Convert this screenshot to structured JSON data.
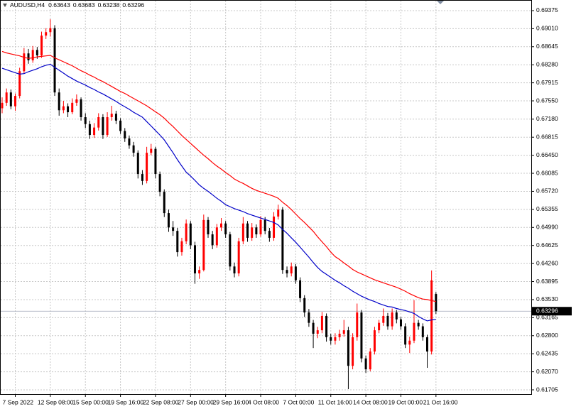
{
  "chart_data": {
    "type": "candlestick",
    "symbol": "AUDUSD,H4",
    "categories": [
      null,
      null,
      null,
      "7 Sep 2022",
      null,
      null,
      null,
      null,
      null,
      null,
      null,
      "12 Sep 08:00",
      null,
      null,
      null,
      null,
      null,
      null,
      null,
      "15 Sep 00:00",
      null,
      null,
      null,
      null,
      null,
      null,
      null,
      "19 Sep 16:00",
      null,
      null,
      null,
      null,
      null,
      null,
      null,
      "22 Sep 08:00",
      null,
      null,
      null,
      null,
      null,
      null,
      null,
      "27 Sep 00:00",
      null,
      null,
      null,
      null,
      null,
      null,
      null,
      "29 Sep 16:00",
      null,
      null,
      null,
      null,
      null,
      null,
      null,
      "4 Oct 08:00",
      null,
      null,
      null,
      null,
      null,
      null,
      null,
      "7 Oct 00:00",
      null,
      null,
      null,
      null,
      null,
      null,
      null,
      "11 Oct 16:00",
      null,
      null,
      null,
      null,
      null,
      null,
      null,
      "14 Oct 08:00",
      null,
      null,
      null,
      null,
      null,
      null,
      null,
      "19 Oct 00:00",
      null,
      null,
      null,
      null,
      null,
      null,
      null,
      "21 Oct 16:00"
    ],
    "open": [
      0.674,
      0.6751,
      0.6772,
      0.6744,
      0.6765,
      0.6815,
      0.6851,
      0.6837,
      0.6858,
      0.6847,
      0.6887,
      0.6894,
      0.6902,
      0.6772,
      0.6736,
      0.6744,
      0.6732,
      0.6751,
      0.6758,
      0.6722,
      0.6708,
      0.6686,
      0.6701,
      0.6722,
      0.6686,
      0.6722,
      0.6729,
      0.6715,
      0.6694,
      0.6679,
      0.6665,
      0.665,
      0.6607,
      0.6593,
      0.665,
      0.6658,
      0.6607,
      0.6571,
      0.6528,
      0.6499,
      0.6492,
      0.6449,
      0.6471,
      0.6507,
      0.6463,
      0.6406,
      0.6413,
      0.6514,
      0.6485,
      0.6463,
      0.6499,
      0.6507,
      0.6485,
      0.642,
      0.6406,
      0.6471,
      0.6507,
      0.6478,
      0.6499,
      0.6485,
      0.6514,
      0.6492,
      0.6478,
      0.6521,
      0.6535,
      0.6413,
      0.6406,
      0.642,
      0.6392,
      0.6356,
      0.6327,
      0.6306,
      0.6284,
      0.6291,
      0.632,
      0.6277,
      0.627,
      0.6277,
      0.6284,
      0.6291,
      0.6219,
      0.6277,
      0.6327,
      0.6234,
      0.6212,
      0.6248,
      0.6291,
      0.6306,
      0.632,
      0.6299,
      0.6327,
      0.6313,
      0.6299,
      0.6262,
      0.627,
      0.6306,
      0.6299,
      0.6277,
      0.6248,
      0.63643
    ],
    "high": [
      0.6762,
      0.678,
      0.6778,
      0.677,
      0.6822,
      0.6862,
      0.686,
      0.6866,
      0.6864,
      0.6895,
      0.6902,
      0.692,
      0.6908,
      0.678,
      0.6755,
      0.675,
      0.676,
      0.6768,
      0.6762,
      0.673,
      0.6715,
      0.671,
      0.673,
      0.6728,
      0.6732,
      0.6745,
      0.6735,
      0.672,
      0.67,
      0.6685,
      0.6672,
      0.6655,
      0.6615,
      0.6662,
      0.6668,
      0.6662,
      0.6612,
      0.6576,
      0.6535,
      0.6512,
      0.6498,
      0.6478,
      0.6515,
      0.6512,
      0.647,
      0.642,
      0.6525,
      0.652,
      0.6492,
      0.6506,
      0.6518,
      0.6512,
      0.649,
      0.6428,
      0.6478,
      0.652,
      0.6512,
      0.6508,
      0.6505,
      0.6522,
      0.652,
      0.6498,
      0.653,
      0.6545,
      0.654,
      0.642,
      0.6428,
      0.6425,
      0.6398,
      0.6362,
      0.6334,
      0.6312,
      0.6298,
      0.6328,
      0.6325,
      0.6284,
      0.6285,
      0.6292,
      0.6312,
      0.6298,
      0.6285,
      0.6345,
      0.6332,
      0.624,
      0.6255,
      0.6298,
      0.6312,
      0.6335,
      0.6326,
      0.6335,
      0.6332,
      0.6318,
      0.6305,
      0.6278,
      0.6352,
      0.6312,
      0.6305,
      0.6282,
      0.6412,
      0.63683
    ],
    "low": [
      0.673,
      0.6745,
      0.6738,
      0.6735,
      0.676,
      0.681,
      0.683,
      0.6832,
      0.684,
      0.6842,
      0.688,
      0.6885,
      0.6765,
      0.6725,
      0.673,
      0.6722,
      0.6728,
      0.6745,
      0.6715,
      0.67,
      0.6678,
      0.668,
      0.6695,
      0.6678,
      0.6682,
      0.6715,
      0.6708,
      0.6688,
      0.6672,
      0.6658,
      0.6642,
      0.6598,
      0.6585,
      0.6588,
      0.6645,
      0.6598,
      0.6562,
      0.652,
      0.649,
      0.6482,
      0.644,
      0.6442,
      0.6465,
      0.6455,
      0.6385,
      0.6395,
      0.641,
      0.6478,
      0.6455,
      0.6458,
      0.6492,
      0.6478,
      0.6412,
      0.6398,
      0.64,
      0.6465,
      0.647,
      0.6472,
      0.6478,
      0.648,
      0.6485,
      0.647,
      0.6472,
      0.6515,
      0.6405,
      0.6398,
      0.64,
      0.6385,
      0.6348,
      0.6318,
      0.6298,
      0.6255,
      0.6275,
      0.6285,
      0.6268,
      0.6262,
      0.6262,
      0.627,
      0.6278,
      0.6172,
      0.6212,
      0.627,
      0.6226,
      0.6205,
      0.6208,
      0.6242,
      0.6285,
      0.63,
      0.6292,
      0.6292,
      0.6305,
      0.6292,
      0.6255,
      0.6245,
      0.6265,
      0.6292,
      0.627,
      0.6215,
      0.6242,
      0.63238
    ],
    "close": [
      0.6751,
      0.6772,
      0.6744,
      0.6765,
      0.6815,
      0.6851,
      0.6837,
      0.6858,
      0.6847,
      0.6887,
      0.6894,
      0.6902,
      0.6772,
      0.6736,
      0.6744,
      0.6732,
      0.6751,
      0.6758,
      0.6722,
      0.6708,
      0.6686,
      0.6701,
      0.6722,
      0.6686,
      0.6722,
      0.6729,
      0.6715,
      0.6694,
      0.6679,
      0.6665,
      0.665,
      0.6607,
      0.6593,
      0.665,
      0.6658,
      0.6607,
      0.6571,
      0.6528,
      0.6499,
      0.6492,
      0.6449,
      0.6471,
      0.6507,
      0.6463,
      0.6406,
      0.6413,
      0.6514,
      0.6485,
      0.6463,
      0.6499,
      0.6507,
      0.6485,
      0.642,
      0.6406,
      0.6471,
      0.6507,
      0.6478,
      0.6499,
      0.6485,
      0.6514,
      0.6492,
      0.6478,
      0.6521,
      0.6535,
      0.6413,
      0.6406,
      0.642,
      0.6392,
      0.6356,
      0.6327,
      0.6306,
      0.6284,
      0.6291,
      0.632,
      0.6277,
      0.627,
      0.6277,
      0.6284,
      0.6291,
      0.6219,
      0.6277,
      0.6327,
      0.6234,
      0.6212,
      0.6248,
      0.6291,
      0.6306,
      0.632,
      0.6299,
      0.6327,
      0.6313,
      0.6299,
      0.6262,
      0.627,
      0.6306,
      0.6299,
      0.6277,
      0.6248,
      0.6392,
      0.63296
    ],
    "up_color": "#ff0000",
    "down_color": "#000000",
    "series": [
      {
        "color": "#ff0000",
        "values": [
          0.6855,
          0.6852,
          0.685,
          0.6848,
          0.6846,
          0.6843,
          0.6841,
          0.6842,
          0.6844,
          0.6845,
          0.6846,
          0.6847,
          0.6842,
          0.6838,
          0.6834,
          0.683,
          0.6826,
          0.6821,
          0.6816,
          0.6812,
          0.6807,
          0.6803,
          0.6798,
          0.6794,
          0.6789,
          0.6784,
          0.6779,
          0.6774,
          0.677,
          0.6765,
          0.676,
          0.6755,
          0.675,
          0.6745,
          0.6739,
          0.6733,
          0.6727,
          0.672,
          0.6711,
          0.6703,
          0.6694,
          0.6685,
          0.6677,
          0.6669,
          0.6661,
          0.6653,
          0.6645,
          0.6638,
          0.663,
          0.6623,
          0.6617,
          0.661,
          0.6604,
          0.6597,
          0.6592,
          0.6588,
          0.6583,
          0.6578,
          0.6574,
          0.6571,
          0.6568,
          0.6565,
          0.6562,
          0.6558,
          0.655,
          0.6543,
          0.6535,
          0.6526,
          0.6517,
          0.6509,
          0.65,
          0.6491,
          0.648,
          0.647,
          0.646,
          0.6449,
          0.644,
          0.6434,
          0.6427,
          0.6421,
          0.6414,
          0.6409,
          0.6405,
          0.6401,
          0.6397,
          0.6393,
          0.639,
          0.6387,
          0.6384,
          0.6381,
          0.6378,
          0.6374,
          0.637,
          0.6365,
          0.6361,
          0.6357,
          0.6354,
          0.6353,
          0.6351,
          0.6349
        ]
      },
      {
        "color": "#0000c8",
        "values": [
          0.6821,
          0.6818,
          0.6815,
          0.6812,
          0.6809,
          0.681,
          0.6814,
          0.6817,
          0.682,
          0.6824,
          0.6827,
          0.6829,
          0.6823,
          0.6817,
          0.6811,
          0.6805,
          0.68,
          0.6795,
          0.6791,
          0.6787,
          0.6782,
          0.6778,
          0.6773,
          0.6769,
          0.6764,
          0.6759,
          0.6754,
          0.6748,
          0.6743,
          0.6738,
          0.6732,
          0.6727,
          0.6722,
          0.6713,
          0.6704,
          0.6695,
          0.6686,
          0.6676,
          0.6663,
          0.665,
          0.6636,
          0.6623,
          0.6611,
          0.6603,
          0.6594,
          0.6585,
          0.6578,
          0.6572,
          0.6565,
          0.6558,
          0.6552,
          0.6545,
          0.6541,
          0.6537,
          0.6534,
          0.6531,
          0.6527,
          0.6524,
          0.6521,
          0.6518,
          0.6515,
          0.6512,
          0.6509,
          0.6504,
          0.6495,
          0.6487,
          0.6478,
          0.6469,
          0.6459,
          0.6449,
          0.6439,
          0.6428,
          0.6418,
          0.641,
          0.6404,
          0.6398,
          0.6392,
          0.6387,
          0.6381,
          0.6376,
          0.637,
          0.6365,
          0.636,
          0.6356,
          0.6352,
          0.6349,
          0.6345,
          0.6342,
          0.6339,
          0.6338,
          0.6335,
          0.6333,
          0.6331,
          0.6328,
          0.6325,
          0.6319,
          0.6314,
          0.631,
          0.6312,
          0.6313
        ]
      }
    ],
    "ylim": [
      0.61619,
      0.6959
    ],
    "yticks": [
      0.69375,
      {
        "value": 0.6901,
        "label": "0.69010"
      },
      0.68645,
      {
        "value": 0.6828,
        "label": "0.68280"
      },
      0.67915,
      {
        "value": 0.6755,
        "label": "0.67550"
      },
      {
        "value": 0.6718,
        "label": "0.67180"
      },
      0.66815,
      {
        "value": 0.6645,
        "label": "0.66450"
      },
      0.66085,
      {
        "value": 0.6572,
        "label": "0.65720"
      },
      0.65355,
      {
        "value": 0.6499,
        "label": "0.64990"
      },
      0.64625,
      {
        "value": 0.6426,
        "label": "0.64260"
      },
      0.63895,
      {
        "value": 0.6353,
        "label": "0.63530"
      },
      0.63165,
      {
        "value": 0.628,
        "label": "0.62800"
      },
      0.62435,
      {
        "value": 0.6207,
        "label": "0.62070"
      },
      0.61705
    ],
    "grid": true
  }
}
